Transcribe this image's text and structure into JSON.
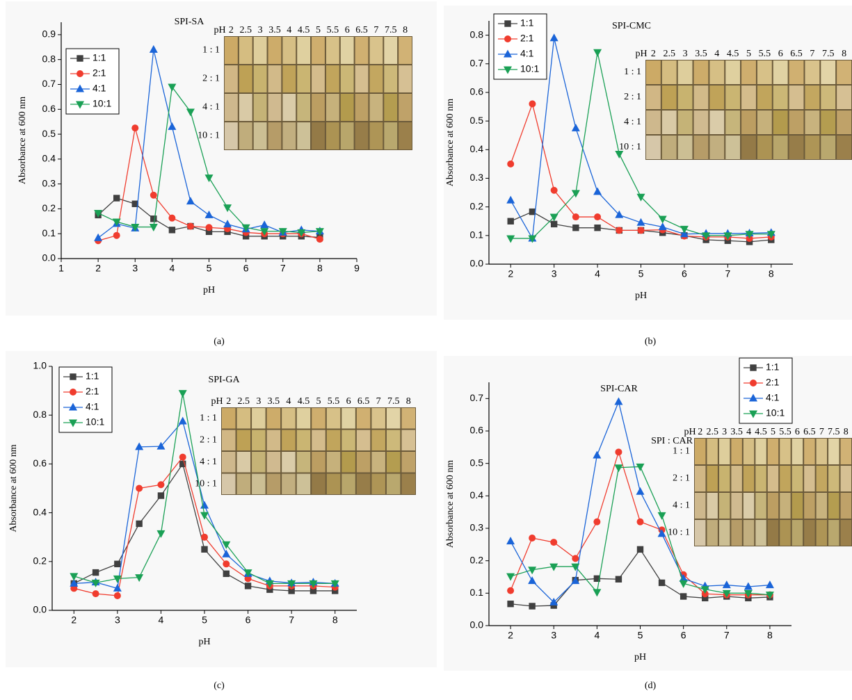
{
  "chart_data": [
    {
      "type": "line",
      "panel_label": "(a)",
      "title": "SPI-SA",
      "xlabel": "pH",
      "ylabel": "Absorbance at 600 nm",
      "x": [
        2,
        2.5,
        3,
        3.5,
        4,
        4.5,
        5,
        5.5,
        6,
        6.5,
        7,
        7.5,
        8
      ],
      "xlim": [
        1,
        9
      ],
      "xticks": [
        1,
        2,
        3,
        4,
        5,
        6,
        7,
        8,
        9
      ],
      "ylim": [
        0,
        0.95
      ],
      "yticks": [
        {
          "value": 0,
          "label": "0.0"
        },
        0.1,
        0.2,
        0.3,
        0.4,
        0.5,
        0.6,
        0.7,
        0.8,
        0.9
      ],
      "series": [
        {
          "name": "1:1",
          "color": "#404040",
          "marker": "square",
          "values": [
            0.175,
            0.243,
            0.22,
            0.16,
            0.115,
            0.13,
            0.108,
            0.108,
            0.09,
            0.09,
            0.09,
            0.09,
            0.085
          ]
        },
        {
          "name": "2:1",
          "color": "#f03c2e",
          "marker": "circle",
          "values": [
            0.072,
            0.093,
            0.525,
            0.255,
            0.163,
            0.13,
            0.125,
            0.12,
            0.105,
            0.1,
            0.1,
            0.1,
            0.078
          ]
        },
        {
          "name": "4:1",
          "color": "#1a64d8",
          "marker": "triangle-up",
          "values": [
            0.083,
            0.14,
            0.122,
            0.84,
            0.53,
            0.23,
            0.175,
            0.138,
            0.118,
            0.135,
            0.105,
            0.115,
            0.11
          ]
        },
        {
          "name": "10:1",
          "color": "#1aa055",
          "marker": "triangle-down",
          "values": [
            0.183,
            0.148,
            0.127,
            0.127,
            0.69,
            0.59,
            0.325,
            0.205,
            0.125,
            0.11,
            0.11,
            0.105,
            0.11
          ]
        }
      ],
      "inset": {
        "columns": [
          "pH",
          "2",
          "2.5",
          "3",
          "3.5",
          "4",
          "4.5",
          "5",
          "5.5",
          "6",
          "6.5",
          "7",
          "7.5",
          "8"
        ],
        "rows": [
          "1 : 1",
          "2 : 1",
          "4 : 1",
          "10 : 1"
        ]
      }
    },
    {
      "type": "line",
      "panel_label": "(b)",
      "title": "SPI-CMC",
      "xlabel": "pH",
      "ylabel": "Absorbance at 600 nm",
      "x": [
        2,
        2.5,
        3,
        3.5,
        4,
        4.5,
        5,
        5.5,
        6,
        6.5,
        7,
        7.5,
        8
      ],
      "xlim": [
        1.5,
        8.5
      ],
      "xticks": [
        2,
        3,
        4,
        5,
        6,
        7,
        8
      ],
      "ylim": [
        0,
        0.85
      ],
      "yticks": [
        {
          "value": 0,
          "label": "0.0"
        },
        0.1,
        0.2,
        0.3,
        0.4,
        0.5,
        0.6,
        0.7,
        0.8
      ],
      "series": [
        {
          "name": "1:1",
          "color": "#404040",
          "marker": "square",
          "values": [
            0.15,
            0.183,
            0.14,
            0.127,
            0.127,
            0.118,
            0.118,
            0.11,
            0.1,
            0.085,
            0.082,
            0.078,
            0.085
          ]
        },
        {
          "name": "2:1",
          "color": "#f03c2e",
          "marker": "circle",
          "values": [
            0.35,
            0.56,
            0.258,
            0.165,
            0.165,
            0.118,
            0.118,
            0.12,
            0.098,
            0.095,
            0.095,
            0.09,
            0.095
          ]
        },
        {
          "name": "4:1",
          "color": "#1a64d8",
          "marker": "triangle-up",
          "values": [
            0.223,
            0.09,
            0.79,
            0.475,
            0.253,
            0.172,
            0.145,
            0.13,
            0.105,
            0.107,
            0.107,
            0.108,
            0.11
          ]
        },
        {
          "name": "10:1",
          "color": "#1aa055",
          "marker": "triangle-down",
          "values": [
            0.09,
            0.09,
            0.165,
            0.248,
            0.74,
            0.385,
            0.235,
            0.158,
            0.123,
            0.1,
            0.1,
            0.105,
            0.105
          ]
        }
      ],
      "inset": {
        "columns": [
          "pH",
          "2",
          "2.5",
          "3",
          "3.5",
          "4",
          "4.5",
          "5",
          "5.5",
          "6",
          "6.5",
          "7",
          "7.5",
          "8"
        ],
        "rows": [
          "1 : 1",
          "2 : 1",
          "4 : 1",
          "10 : 1"
        ]
      }
    },
    {
      "type": "line",
      "panel_label": "(c)",
      "title": "SPI-GA",
      "xlabel": "pH",
      "ylabel": "Absorbance at 600 nm",
      "x": [
        2,
        2.5,
        3,
        3.5,
        4,
        4.5,
        5,
        5.5,
        6,
        6.5,
        7,
        7.5,
        8
      ],
      "xlim": [
        1.5,
        8.5
      ],
      "xticks": [
        2,
        3,
        4,
        5,
        6,
        7,
        8
      ],
      "ylim": [
        0,
        1.0
      ],
      "yticks": [
        {
          "value": 0,
          "label": "0.0"
        },
        0.2,
        0.4,
        0.6,
        0.8,
        {
          "value": 1,
          "label": "1.0"
        }
      ],
      "series": [
        {
          "name": "1:1",
          "color": "#404040",
          "marker": "square",
          "values": [
            0.11,
            0.155,
            0.19,
            0.355,
            0.47,
            0.6,
            0.25,
            0.15,
            0.1,
            0.085,
            0.08,
            0.08,
            0.08
          ]
        },
        {
          "name": "2:1",
          "color": "#f03c2e",
          "marker": "circle",
          "values": [
            0.09,
            0.068,
            0.06,
            0.5,
            0.515,
            0.628,
            0.3,
            0.19,
            0.13,
            0.1,
            0.1,
            0.1,
            0.095
          ]
        },
        {
          "name": "4:1",
          "color": "#1a64d8",
          "marker": "triangle-up",
          "values": [
            0.11,
            0.115,
            0.09,
            0.67,
            0.672,
            0.775,
            0.43,
            0.23,
            0.15,
            0.12,
            0.112,
            0.115,
            0.11
          ]
        },
        {
          "name": "10:1",
          "color": "#1aa055",
          "marker": "triangle-down",
          "values": [
            0.14,
            0.113,
            0.13,
            0.135,
            0.315,
            0.89,
            0.39,
            0.27,
            0.155,
            0.11,
            0.11,
            0.11,
            0.11
          ]
        }
      ],
      "inset": {
        "columns": [
          "pH",
          "2",
          "2.5",
          "3",
          "3.5",
          "4",
          "4.5",
          "5",
          "5.5",
          "6",
          "6.5",
          "7",
          "7.5",
          "8"
        ],
        "rows": [
          "1 : 1",
          "2 : 1",
          "4 : 1",
          "10 : 1"
        ]
      }
    },
    {
      "type": "line",
      "panel_label": "(d)",
      "title": "SPI-CAR",
      "xlabel": "pH",
      "ylabel": "Absorbance at 600 nm",
      "x": [
        2,
        2.5,
        3,
        3.5,
        4,
        4.5,
        5,
        5.5,
        6,
        6.5,
        7,
        7.5,
        8
      ],
      "xlim": [
        1.5,
        8.5
      ],
      "xticks": [
        2,
        3,
        4,
        5,
        6,
        7,
        8
      ],
      "ylim": [
        0,
        0.75
      ],
      "yticks": [
        {
          "value": 0,
          "label": "0.0"
        },
        0.1,
        0.2,
        0.3,
        0.4,
        0.5,
        0.6,
        0.7
      ],
      "series": [
        {
          "name": "1:1",
          "color": "#404040",
          "marker": "square",
          "values": [
            0.067,
            0.06,
            0.062,
            0.14,
            0.145,
            0.143,
            0.235,
            0.132,
            0.09,
            0.085,
            0.09,
            0.085,
            0.088
          ]
        },
        {
          "name": "2:1",
          "color": "#f03c2e",
          "marker": "circle",
          "values": [
            0.108,
            0.27,
            0.257,
            0.207,
            0.32,
            0.535,
            0.32,
            0.295,
            0.157,
            0.098,
            0.095,
            0.095,
            0.095
          ]
        },
        {
          "name": "4:1",
          "color": "#1a64d8",
          "marker": "triangle-up",
          "values": [
            0.26,
            0.138,
            0.072,
            0.138,
            0.525,
            0.69,
            0.413,
            0.283,
            0.145,
            0.122,
            0.125,
            0.12,
            0.125
          ]
        },
        {
          "name": "10:1",
          "color": "#1aa055",
          "marker": "triangle-down",
          "values": [
            0.152,
            0.172,
            0.182,
            0.182,
            0.103,
            0.487,
            0.49,
            0.34,
            0.13,
            0.112,
            0.1,
            0.1,
            0.095
          ]
        }
      ],
      "inset": {
        "columns": [
          "pH",
          "2",
          "2.5",
          "3",
          "3.5",
          "4",
          "4.5",
          "5",
          "5.5",
          "6",
          "6.5",
          "7",
          "7.5",
          "8"
        ],
        "corner": "SPI : CAR",
        "rows": [
          "1 : 1",
          "2 : 1",
          "4 : 1",
          "10 : 1"
        ]
      }
    }
  ]
}
